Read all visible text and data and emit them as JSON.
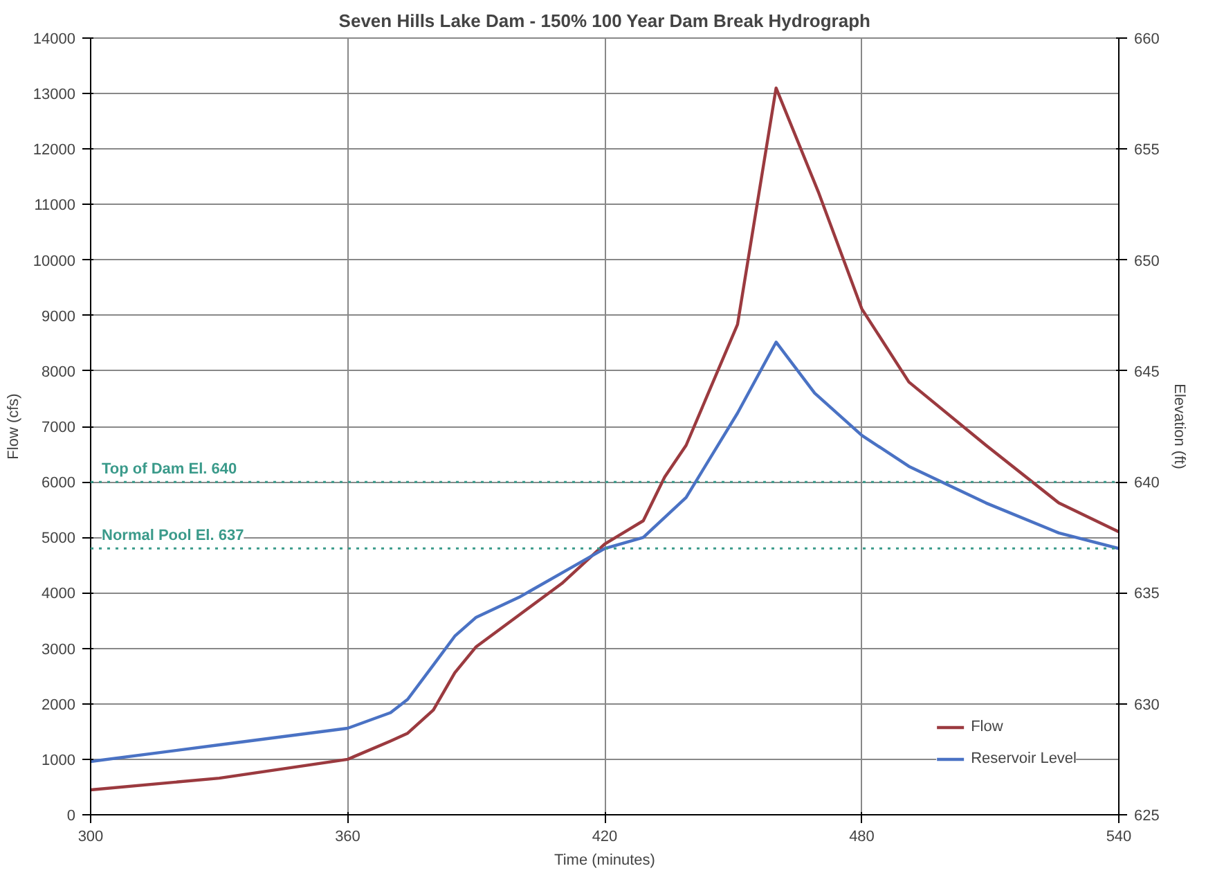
{
  "chart_data": {
    "type": "line",
    "title": "Seven Hills Lake Dam - 150% 100 Year Dam Break Hydrograph",
    "xlabel": "Time (minutes)",
    "ylabel": "Flow (cfs)",
    "y2label": "Elevation (ft)",
    "xlim": [
      300,
      540
    ],
    "xticks": [
      300,
      360,
      420,
      480,
      540
    ],
    "ylim": [
      0,
      14000
    ],
    "yticks": [
      0,
      1000,
      2000,
      3000,
      4000,
      5000,
      6000,
      7000,
      8000,
      9000,
      10000,
      11000,
      12000,
      13000,
      14000
    ],
    "y2lim": [
      625,
      660
    ],
    "y2ticks": [
      625,
      630,
      635,
      640,
      645,
      650,
      655,
      660
    ],
    "grid": true,
    "legend": "bottom right",
    "line_style": "solid",
    "series": [
      {
        "name": "Flow",
        "color": "#9b3a3f",
        "x": [
          300,
          330,
          360,
          370,
          374,
          380,
          385,
          390,
          400,
          410,
          420,
          429,
          434,
          439,
          451,
          460,
          470,
          480,
          491,
          509,
          526,
          540
        ],
        "values": [
          450,
          660,
          1000,
          1330,
          1470,
          1890,
          2560,
          3030,
          3600,
          4170,
          4880,
          5300,
          6090,
          6660,
          8840,
          13100,
          11200,
          9120,
          7800,
          6660,
          5620,
          5100
        ]
      },
      {
        "name": "Reservoir Level",
        "color": "#4a72c4",
        "axis": "y2",
        "x": [
          300,
          330,
          360,
          370,
          374,
          380,
          385,
          390,
          400,
          410,
          420,
          429,
          439,
          451,
          460,
          469,
          480,
          491,
          509,
          526,
          540
        ],
        "values": [
          627.4,
          628.15,
          628.9,
          629.6,
          630.2,
          631.75,
          633.05,
          633.9,
          634.8,
          635.9,
          637.0,
          637.5,
          639.3,
          643.1,
          646.3,
          644.0,
          642.1,
          640.7,
          639.05,
          637.7,
          637.0
        ]
      }
    ],
    "ref_lines": [
      {
        "axis": "y2",
        "value": 640,
        "label": "Top of Dam El. 640",
        "color": "#3a9a8a",
        "line_style": "dotted"
      },
      {
        "axis": "y2",
        "value": 637,
        "label": "Normal Pool El. 637",
        "color": "#3a9a8a",
        "line_style": "dotted"
      }
    ]
  }
}
